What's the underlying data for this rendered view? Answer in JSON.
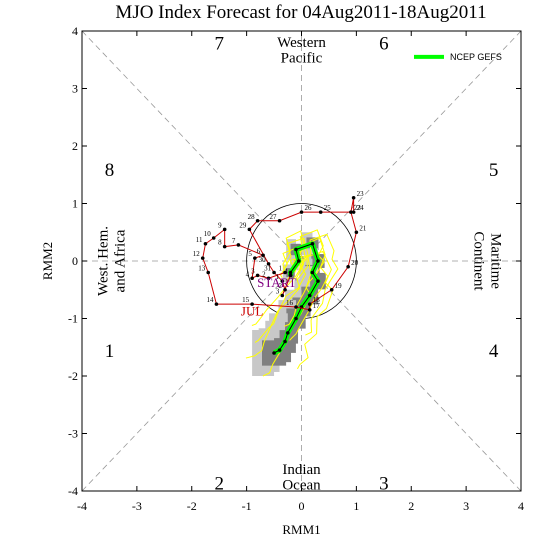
{
  "chart_data": {
    "type": "scatter",
    "title": "MJO Index Forecast for 04Aug2011-18Aug2011",
    "xlabel": "RMM1",
    "ylabel": "RMM2",
    "xlim": [
      -4,
      4
    ],
    "ylim": [
      -4,
      4
    ],
    "xticks": [
      "-4",
      "-3",
      "-2",
      "-1",
      "0",
      "1",
      "2",
      "3",
      "4"
    ],
    "yticks": [
      "-4",
      "-3",
      "-2",
      "-1",
      "0",
      "1",
      "2",
      "3",
      "4"
    ],
    "unit_circle_radius": 1,
    "phase_numbers": [
      "1",
      "2",
      "3",
      "4",
      "5",
      "6",
      "7",
      "8"
    ],
    "regions": {
      "top": [
        "Western",
        "Pacific"
      ],
      "bottom": [
        "Indian",
        "Ocean"
      ],
      "left": [
        "West. Hem.",
        "and Africa"
      ],
      "right": [
        "Maritime",
        "Continent"
      ]
    },
    "legend": {
      "label": "NCEP GEFS",
      "color": "#00ff00",
      "position": "top-right"
    },
    "colors": {
      "observed_line": "#cc0000",
      "ensemble": "#ffff00",
      "mean": "#00ff00",
      "spread_dark": "#808080",
      "spread_light": "#c8c8c8"
    },
    "month_labels": [
      {
        "text": "JUL",
        "x": -0.9,
        "y": -0.95,
        "color": "#cc0000"
      },
      {
        "text": "START",
        "x": -0.45,
        "y": -0.45,
        "color": "#800080"
      }
    ],
    "observed": [
      {
        "day": "1",
        "x": -0.3,
        "y": -0.2
      },
      {
        "day": "2",
        "x": -0.6,
        "y": -0.3
      },
      {
        "day": "3",
        "x": -0.8,
        "y": -0.25
      },
      {
        "day": "4",
        "x": -0.9,
        "y": -0.3
      },
      {
        "day": "5",
        "x": -0.85,
        "y": 0.05
      },
      {
        "day": "6",
        "x": -0.7,
        "y": 0.1
      },
      {
        "day": "7",
        "x": -1.15,
        "y": 0.28
      },
      {
        "day": "8",
        "x": -1.4,
        "y": 0.25
      },
      {
        "day": "9",
        "x": -1.4,
        "y": 0.55
      },
      {
        "day": "10",
        "x": -1.6,
        "y": 0.4
      },
      {
        "day": "11",
        "x": -1.75,
        "y": 0.3
      },
      {
        "day": "12",
        "x": -1.8,
        "y": 0.05
      },
      {
        "day": "13",
        "x": -1.7,
        "y": -0.2
      },
      {
        "day": "14",
        "x": -1.55,
        "y": -0.75
      },
      {
        "day": "15",
        "x": -0.9,
        "y": -0.75
      },
      {
        "day": "16",
        "x": -0.1,
        "y": -0.8
      },
      {
        "day": "17",
        "x": 0.15,
        "y": -0.85
      },
      {
        "day": "18",
        "x": 0.15,
        "y": -0.75
      },
      {
        "day": "19",
        "x": 0.55,
        "y": -0.5
      },
      {
        "day": "20",
        "x": 0.85,
        "y": -0.1
      },
      {
        "day": "21",
        "x": 1.0,
        "y": 0.5
      },
      {
        "day": "22",
        "x": 0.9,
        "y": 0.85
      },
      {
        "day": "23",
        "x": 0.95,
        "y": 1.1
      },
      {
        "day": "24",
        "x": 0.95,
        "y": 0.85
      },
      {
        "day": "25",
        "x": 0.35,
        "y": 0.85
      },
      {
        "day": "26",
        "x": 0.0,
        "y": 0.85
      },
      {
        "day": "27",
        "x": -0.4,
        "y": 0.7
      },
      {
        "day": "28",
        "x": -0.8,
        "y": 0.7
      },
      {
        "day": "29",
        "x": -0.95,
        "y": 0.55
      },
      {
        "day": "30",
        "x": -0.6,
        "y": -0.05
      },
      {
        "day": "31",
        "x": -0.5,
        "y": -0.2
      },
      {
        "day": "1",
        "x": -0.35,
        "y": -0.35
      },
      {
        "day": "2",
        "x": -0.3,
        "y": -0.5
      },
      {
        "day": "3",
        "x": -0.35,
        "y": -0.6
      },
      {
        "day": "4",
        "x": -0.2,
        "y": -0.25
      }
    ],
    "forecast_mean": [
      {
        "x": -0.2,
        "y": -0.25
      },
      {
        "x": -0.2,
        "y": -0.2
      },
      {
        "x": -0.05,
        "y": 0.0
      },
      {
        "x": -0.1,
        "y": 0.2
      },
      {
        "x": 0.2,
        "y": 0.3
      },
      {
        "x": 0.3,
        "y": 0.0
      },
      {
        "x": 0.2,
        "y": -0.2
      },
      {
        "x": 0.3,
        "y": -0.35
      },
      {
        "x": 0.15,
        "y": -0.6
      },
      {
        "x": 0.0,
        "y": -0.8
      },
      {
        "x": -0.1,
        "y": -1.0
      },
      {
        "x": -0.25,
        "y": -1.25
      },
      {
        "x": -0.3,
        "y": -1.4
      },
      {
        "x": -0.4,
        "y": -1.55
      },
      {
        "x": -0.5,
        "y": -1.6
      }
    ]
  }
}
